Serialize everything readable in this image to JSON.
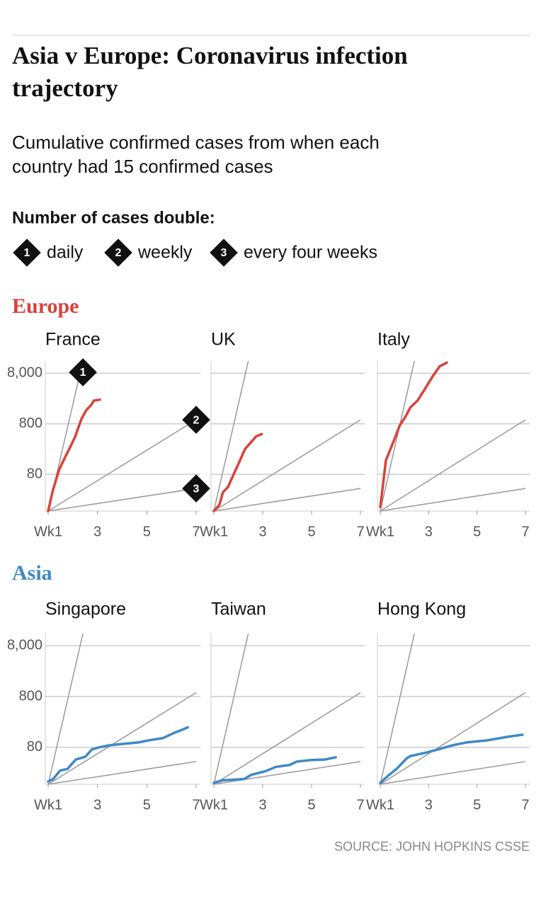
{
  "chart_data": {
    "type": "line",
    "title": [
      "Asia v Europe: Coronavirus infection",
      "trajectory"
    ],
    "subtitle": [
      "Cumulative confirmed cases from when each",
      "country had 15 confirmed cases"
    ],
    "legend_title": "Number of cases double:",
    "legend": [
      {
        "marker": "1",
        "label": "daily"
      },
      {
        "marker": "2",
        "label": "weekly"
      },
      {
        "marker": "3",
        "label": "every four weeks"
      }
    ],
    "reference_lines": [
      {
        "x": [
          1,
          2.41
        ],
        "values": [
          15,
          14000
        ]
      },
      {
        "x": [
          1,
          7
        ],
        "values": [
          15,
          960
        ]
      },
      {
        "x": [
          1,
          7
        ],
        "values": [
          15,
          42
        ]
      }
    ],
    "xlim": [
      1,
      7
    ],
    "xticks": [
      {
        "value": 1,
        "label": "Wk1"
      },
      3,
      5,
      7
    ],
    "ylim": [
      15,
      14000
    ],
    "yticks": [
      {
        "value": 8000,
        "label": "8,000"
      },
      800,
      80
    ],
    "log_scale": "y",
    "grid": true,
    "groups": [
      {
        "name": "Europe",
        "color": "#d9423a",
        "panels": [
          {
            "title": "France",
            "x": [
              1,
              1.2,
              1.45,
              1.7,
              1.9,
              2.1,
              2.35,
              2.55,
              2.75,
              2.85,
              3.1
            ],
            "values": [
              15,
              40,
              100,
              180,
              280,
              450,
              1000,
              1500,
              1900,
              2300,
              2400
            ]
          },
          {
            "title": "UK",
            "x": [
              1,
              1.23,
              1.37,
              1.58,
              1.81,
              2.04,
              2.27,
              2.53,
              2.73,
              2.96
            ],
            "values": [
              15,
              20,
              35,
              45,
              80,
              140,
              250,
              350,
              450,
              500
            ]
          },
          {
            "title": "Italy",
            "x": [
              1,
              1.09,
              1.23,
              1.52,
              1.81,
              2.04,
              2.25,
              2.54,
              2.83,
              3.17,
              3.46,
              3.75
            ],
            "values": [
              18,
              40,
              150,
              330,
              750,
              1100,
              1700,
              2300,
              3800,
              7000,
              11000,
              13000
            ]
          }
        ]
      },
      {
        "name": "Asia",
        "color": "#3f88c5",
        "panels": [
          {
            "title": "Singapore",
            "x": [
              1,
              1.2,
              1.49,
              1.78,
              2.12,
              2.5,
              2.78,
              3.07,
              3.5,
              4.07,
              4.66,
              5.08,
              5.66,
              6.09,
              6.46,
              6.66
            ],
            "values": [
              17,
              19,
              28,
              30,
              46,
              52,
              73,
              80,
              88,
              94,
              100,
              110,
              122,
              153,
              180,
              198
            ]
          },
          {
            "title": "Taiwan",
            "x": [
              1,
              1.37,
              2.24,
              2.53,
              3.1,
              3.54,
              4.1,
              4.4,
              4.98,
              5.55,
              5.99
            ],
            "values": [
              16,
              18,
              19,
              23,
              27,
              33,
              36,
              42,
              45,
              46,
              51
            ]
          },
          {
            "title": "Hong Kong",
            "x": [
              1,
              1.32,
              1.67,
              2.1,
              2.25,
              2.83,
              3.41,
              3.99,
              4.57,
              5.43,
              6.3,
              6.88
            ],
            "values": [
              16,
              22,
              30,
              49,
              54,
              62,
              73,
              88,
              100,
              110,
              130,
              142
            ]
          }
        ]
      }
    ],
    "source": "SOURCE: JOHN HOPKINS CSSE"
  }
}
